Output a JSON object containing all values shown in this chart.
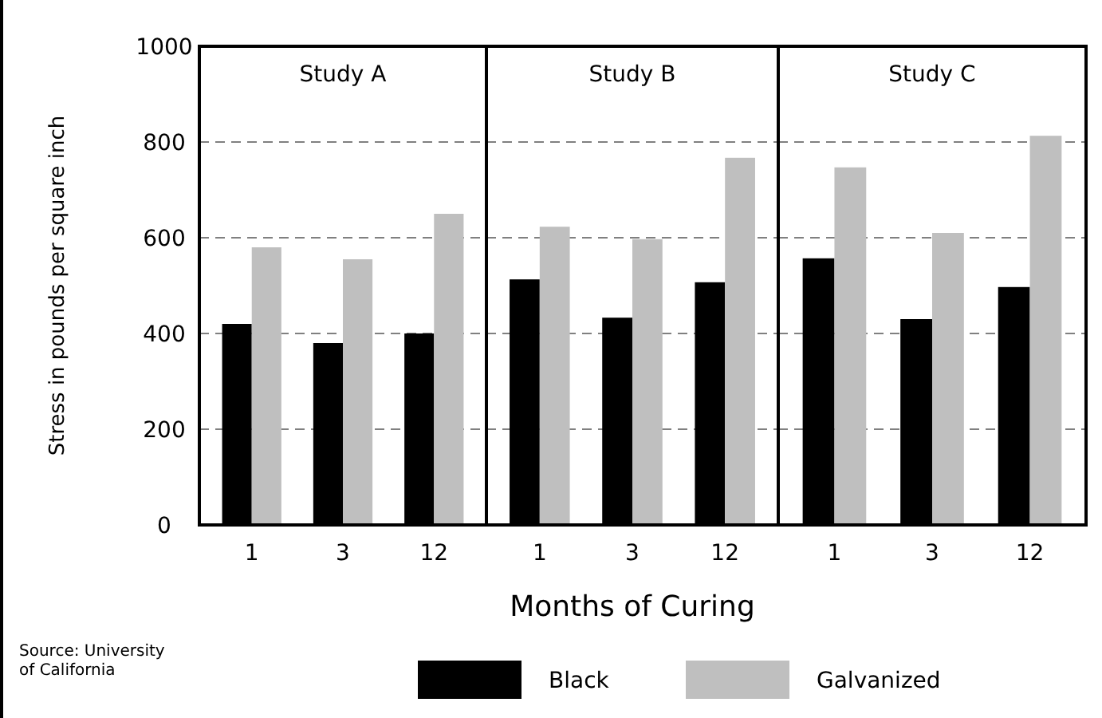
{
  "chart_data": [
    {
      "type": "bar",
      "title": "Study A",
      "ylabel": "Stress in pounds per square inch",
      "categories": [
        "1",
        "3",
        "12"
      ],
      "series": [
        {
          "color": "#000000",
          "values": [
            420,
            380,
            400
          ]
        },
        {
          "color": "#bfbfbf",
          "values": [
            580,
            555,
            650
          ]
        }
      ],
      "ylim": [
        0,
        1000
      ],
      "yticks": [
        0,
        200,
        400,
        600,
        800,
        1000
      ],
      "grid": "y",
      "annotations": [
        "Source: University of California"
      ]
    },
    {
      "type": "bar",
      "title": "Study B",
      "xlabel": "Months of Curing",
      "categories": [
        "1",
        "3",
        "12"
      ],
      "series": [
        {
          "name": "Black",
          "color": "#000000",
          "values": [
            513,
            433,
            507
          ]
        },
        {
          "name": "Galvanized",
          "color": "#bfbfbf",
          "values": [
            623,
            597,
            767
          ]
        }
      ],
      "ylim": [
        0,
        1000
      ],
      "yticks": [
        0,
        200,
        400,
        600,
        800,
        1000
      ],
      "grid": "y",
      "tick_labels": "x",
      "legend": "bottom"
    },
    {
      "type": "bar",
      "title": "Study C",
      "categories": [
        "1",
        "3",
        "12"
      ],
      "series": [
        {
          "color": "#000000",
          "values": [
            557,
            430,
            497
          ]
        },
        {
          "color": "#bfbfbf",
          "values": [
            747,
            610,
            813
          ]
        }
      ],
      "ylim": [
        0,
        1000
      ],
      "yticks": [
        0,
        200,
        400,
        600,
        800,
        1000
      ],
      "grid": "y",
      "tick_labels": "x"
    }
  ]
}
